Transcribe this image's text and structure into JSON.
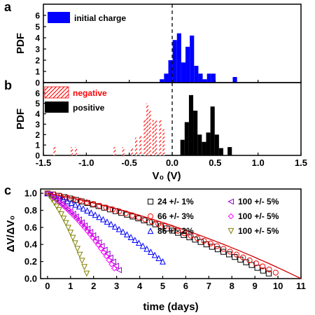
{
  "colors": {
    "initial": "#0000ff",
    "negative": "#ff0000",
    "positive": "#000000",
    "c_series": [
      "#000000",
      "#ff0000",
      "#0000ff",
      "#9900cc",
      "#ff00ff",
      "#808000"
    ]
  },
  "chart_data": [
    {
      "panel": "a",
      "type": "bar",
      "ylabel": "PDF",
      "xlim": [
        -1.5,
        1.5
      ],
      "ylim": [
        0,
        7
      ],
      "yticks": [
        "0",
        "1",
        "2",
        "3",
        "4",
        "5",
        "6"
      ],
      "dashed_vline_x": 0,
      "legend": "top-left",
      "series": [
        {
          "name": "initial charge",
          "fill": "solid",
          "bin_width": 0.05,
          "bars": [
            {
              "x": -0.12,
              "y": 0.3
            },
            {
              "x": -0.07,
              "y": 0.8
            },
            {
              "x": -0.02,
              "y": 2.0
            },
            {
              "x": 0.03,
              "y": 3.8
            },
            {
              "x": 0.08,
              "y": 4.4
            },
            {
              "x": 0.13,
              "y": 1.8
            },
            {
              "x": 0.18,
              "y": 3.2
            },
            {
              "x": 0.23,
              "y": 4.2
            },
            {
              "x": 0.28,
              "y": 1.5
            },
            {
              "x": 0.33,
              "y": 0.8
            },
            {
              "x": 0.38,
              "y": 0.3
            },
            {
              "x": 0.43,
              "y": 0.8
            },
            {
              "x": 0.48,
              "y": 0.8
            },
            {
              "x": 0.73,
              "y": 0.5
            }
          ]
        }
      ]
    },
    {
      "panel": "b",
      "type": "bar",
      "ylabel": "PDF",
      "xlabel": "V₀ (V)",
      "xlim": [
        -1.5,
        1.5
      ],
      "ylim": [
        0,
        7
      ],
      "xticks": [
        "-1.5",
        "-1.0",
        "-0.5",
        "0.0",
        "0.5",
        "1.0",
        "1.5"
      ],
      "yticks": [
        "0",
        "1",
        "2",
        "3",
        "4",
        "5",
        "6"
      ],
      "dashed_vline_x": 0,
      "legend": "top-left",
      "series": [
        {
          "name": "negative",
          "fill": "hatched",
          "bin_width": 0.025,
          "bars": [
            {
              "x": -1.37,
              "y": 0.8
            },
            {
              "x": -1.17,
              "y": 0.8
            },
            {
              "x": -1.12,
              "y": 0.8
            },
            {
              "x": -0.67,
              "y": 0.8
            },
            {
              "x": -0.57,
              "y": 0.8
            },
            {
              "x": -0.47,
              "y": 0.8
            },
            {
              "x": -0.42,
              "y": 1.7
            },
            {
              "x": -0.37,
              "y": 1.9
            },
            {
              "x": -0.32,
              "y": 3.5
            },
            {
              "x": -0.29,
              "y": 5.0
            },
            {
              "x": -0.26,
              "y": 4.3
            },
            {
              "x": -0.22,
              "y": 3.4
            },
            {
              "x": -0.19,
              "y": 3.4
            },
            {
              "x": -0.14,
              "y": 3.4
            },
            {
              "x": -0.1,
              "y": 2.5
            }
          ]
        },
        {
          "name": "positive",
          "fill": "solid",
          "bin_width": 0.05,
          "bars": [
            {
              "x": 0.12,
              "y": 1.5
            },
            {
              "x": 0.17,
              "y": 3.2
            },
            {
              "x": 0.22,
              "y": 5.8
            },
            {
              "x": 0.27,
              "y": 4.3
            },
            {
              "x": 0.32,
              "y": 2.0
            },
            {
              "x": 0.37,
              "y": 1.3
            },
            {
              "x": 0.42,
              "y": 2.2
            },
            {
              "x": 0.47,
              "y": 4.7
            },
            {
              "x": 0.52,
              "y": 2.0
            },
            {
              "x": 0.57,
              "y": 0.7
            },
            {
              "x": 0.67,
              "y": 0.8
            }
          ]
        }
      ]
    },
    {
      "panel": "c",
      "type": "scatter",
      "xlabel": "time (days)",
      "ylabel": "ΔV/ΔV₀",
      "xlim": [
        -0.3,
        11
      ],
      "ylim": [
        0,
        1.05
      ],
      "xticks": [
        "0",
        "1",
        "2",
        "3",
        "4",
        "5",
        "6",
        "7",
        "8",
        "9",
        "10",
        "11"
      ],
      "yticks": [
        "0.0",
        "0.2",
        "0.4",
        "0.6",
        "0.8",
        "1.0"
      ],
      "legend": "top-right",
      "series": [
        {
          "name": "24 +/- 1%",
          "marker": "square",
          "x_end": 9.6,
          "y_end": 0.06,
          "count": 40
        },
        {
          "name": "66 +/- 3%",
          "marker": "circle",
          "x_end": 9.9,
          "y_end": 0.07,
          "count": 36
        },
        {
          "name": "86 +/- 2%",
          "marker": "triangle-up",
          "x_end": 5.0,
          "y_end": 0.2,
          "count": 30
        },
        {
          "name": "100 +/- 5%",
          "marker": "triangle-left",
          "x_end": 3.1,
          "y_end": 0.1,
          "count": 26
        },
        {
          "name": "100 +/- 5%",
          "marker": "diamond",
          "x_end": 2.9,
          "y_end": 0.12,
          "count": 26
        },
        {
          "name": "100 +/- 5%",
          "marker": "triangle-down",
          "x_end": 1.7,
          "y_end": 0.06,
          "count": 18
        }
      ],
      "fit_line": {
        "x": [
          0,
          11
        ],
        "y": [
          1.0,
          0.0
        ],
        "shape": "exponential-like decay"
      }
    }
  ]
}
